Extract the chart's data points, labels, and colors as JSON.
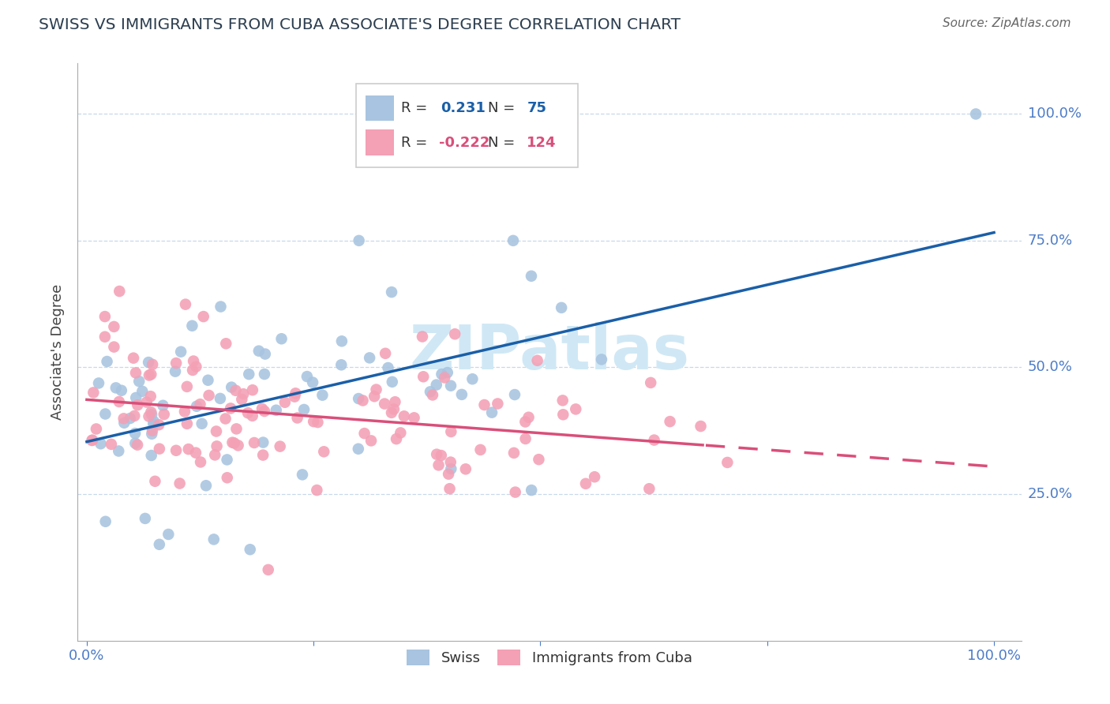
{
  "title": "SWISS VS IMMIGRANTS FROM CUBA ASSOCIATE'S DEGREE CORRELATION CHART",
  "source": "Source: ZipAtlas.com",
  "ylabel": "Associate's Degree",
  "legend_swiss_R": "0.231",
  "legend_swiss_N": "75",
  "legend_cuba_R": "-0.222",
  "legend_cuba_N": "124",
  "swiss_color": "#a8c4e0",
  "cuba_color": "#f4a0b5",
  "swiss_line_color": "#1a5fa8",
  "cuba_line_color": "#d94f7a",
  "grid_color": "#c8d8ea",
  "watermark": "ZIPatlas",
  "watermark_color": "#d0e8f5",
  "bg_color": "#ffffff",
  "title_color": "#2c3e50",
  "source_color": "#666666",
  "tick_color": "#4d7cc7",
  "swiss_seed": 101,
  "cuba_seed": 202
}
